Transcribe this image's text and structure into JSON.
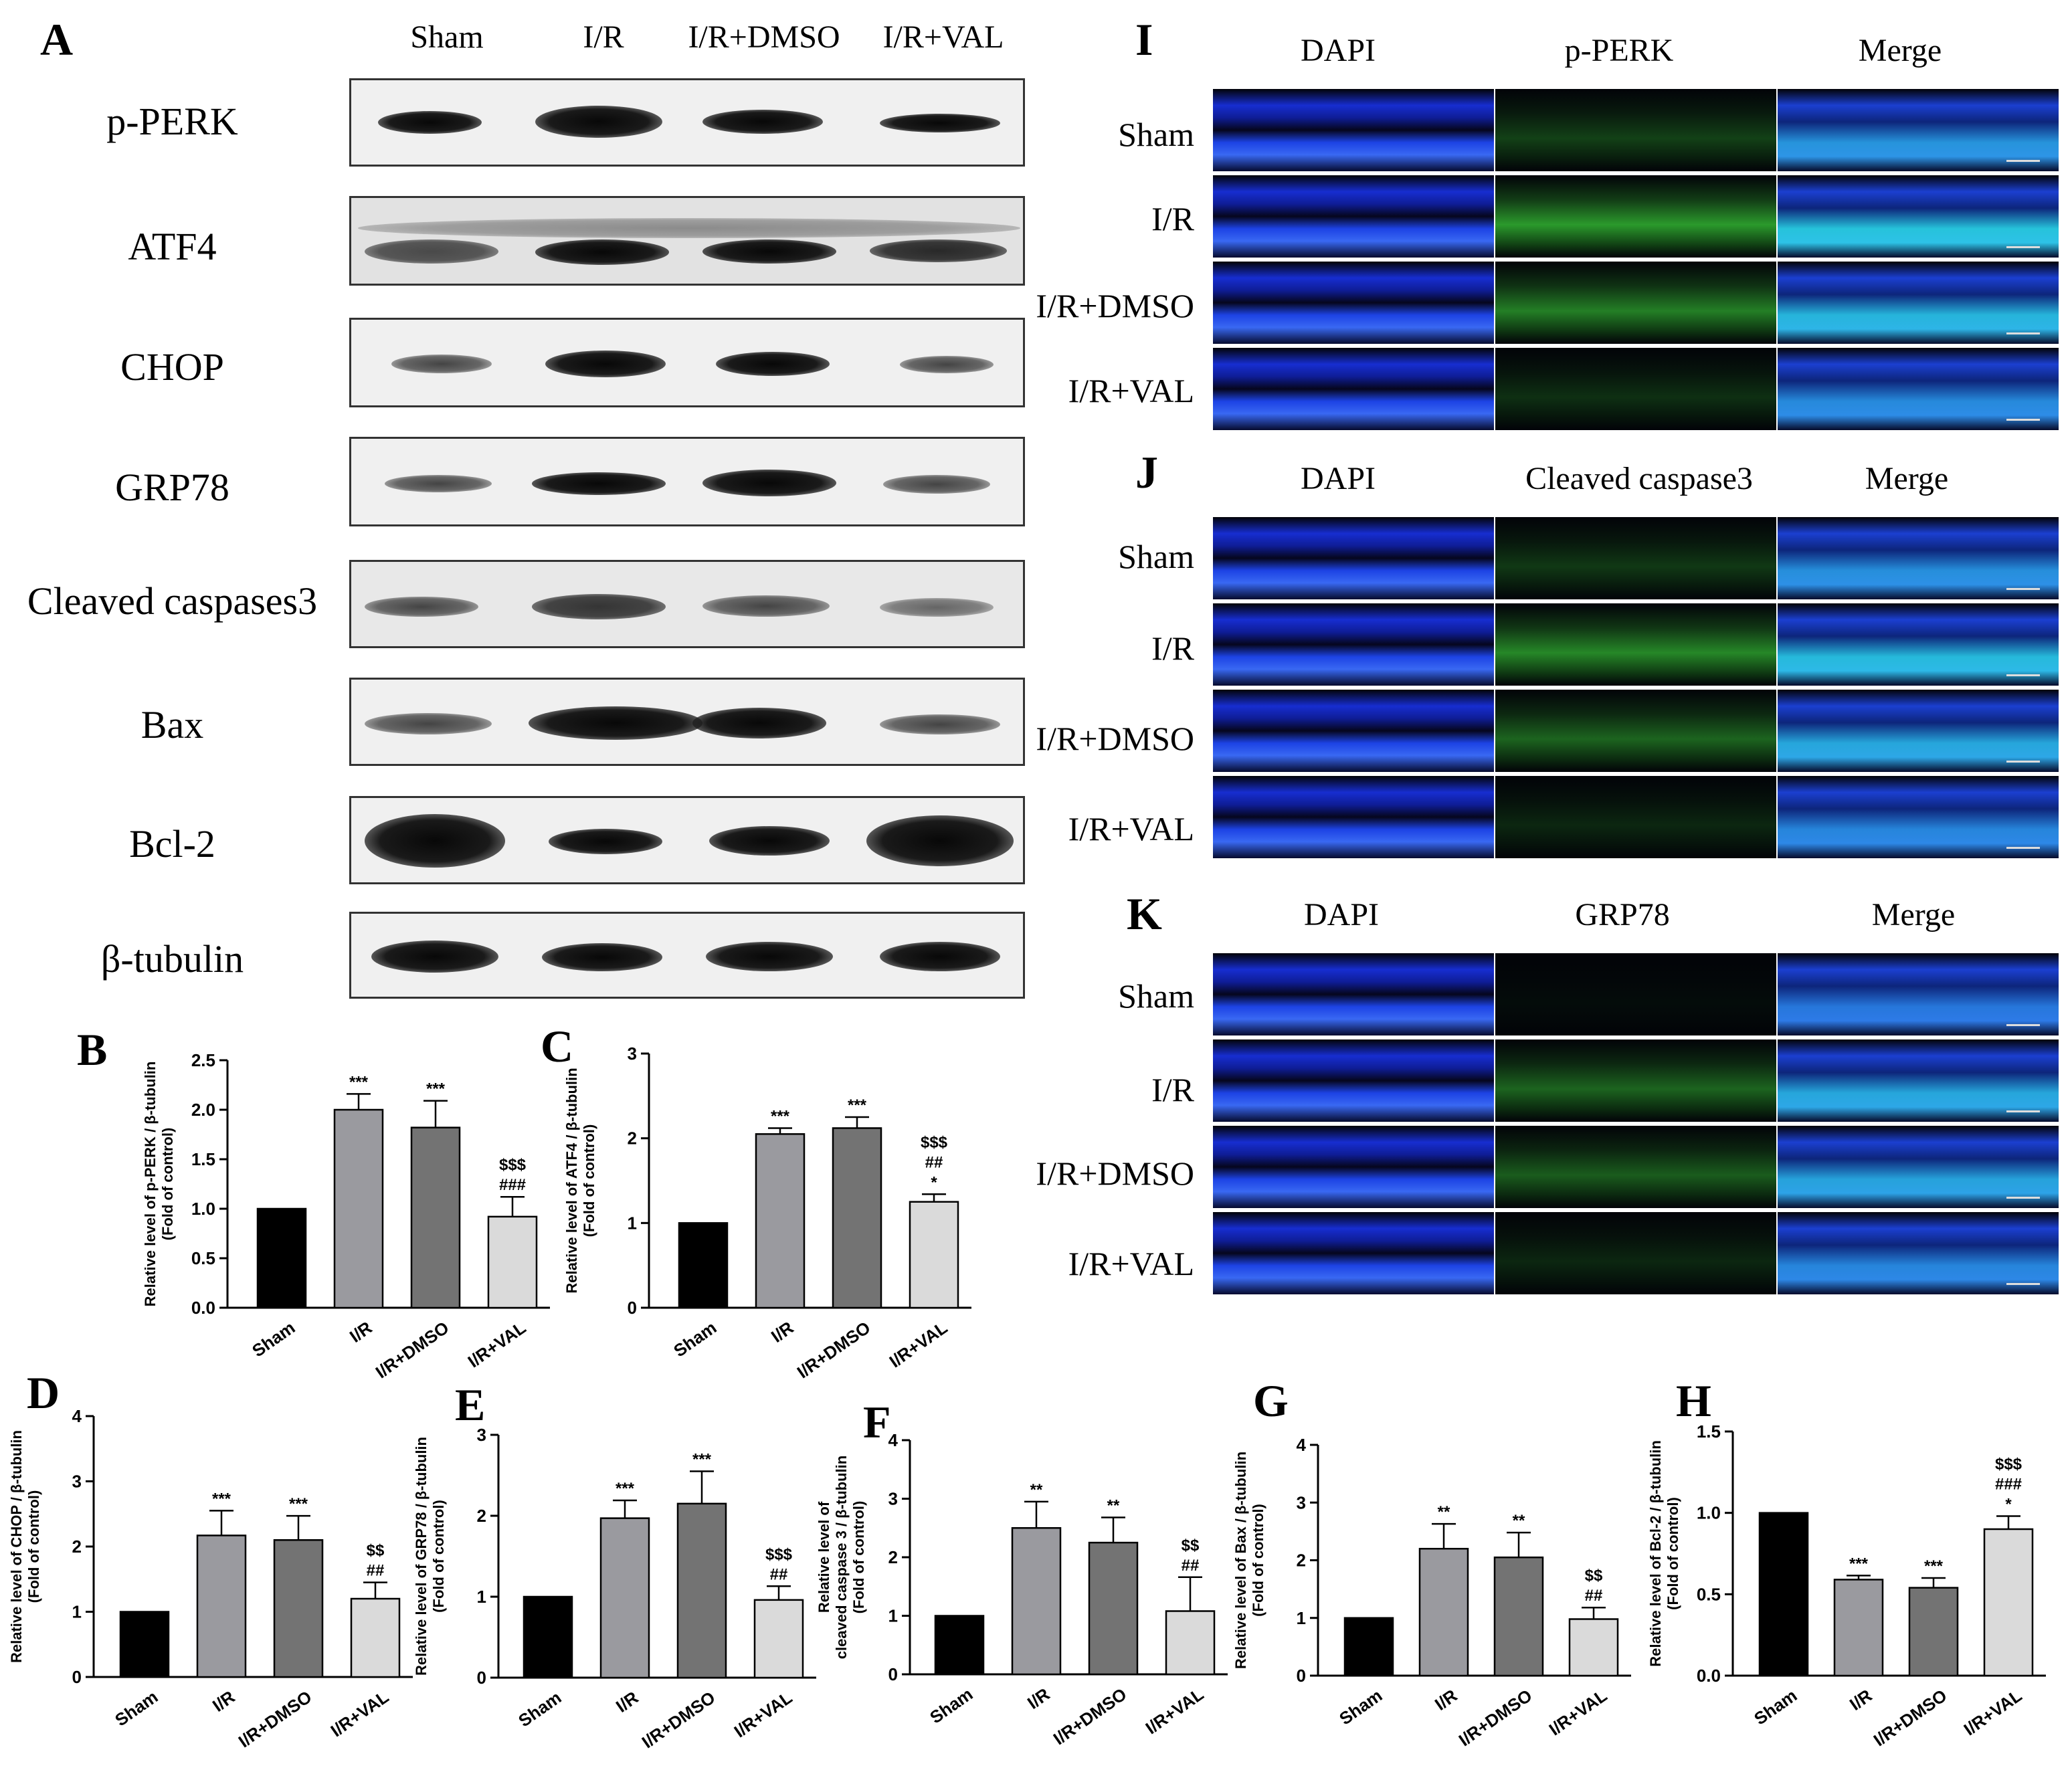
{
  "figure": {
    "panel_letters": [
      "A",
      "B",
      "C",
      "D",
      "E",
      "F",
      "G",
      "H",
      "I",
      "J",
      "K"
    ],
    "western_blot": {
      "groups": [
        "Sham",
        "I/R",
        "I/R+DMSO",
        "I/R+VAL"
      ],
      "proteins": [
        "p-PERK",
        "ATF4",
        "CHOP",
        "GRP78",
        "Cleaved caspases3",
        "Bax",
        "Bcl-2",
        "β-tubulin"
      ]
    },
    "fluorescence": [
      {
        "letter": "I",
        "columns": [
          "DAPI",
          "p-PERK",
          "Merge"
        ]
      },
      {
        "letter": "J",
        "columns": [
          "DAPI",
          "Cleaved caspase3",
          "Merge"
        ]
      },
      {
        "letter": "K",
        "columns": [
          "DAPI",
          "GRP78",
          "Merge"
        ]
      }
    ],
    "fluorescence_rows": [
      "Sham",
      "I/R",
      "I/R+DMSO",
      "I/R+VAL"
    ]
  },
  "chart_data": [
    {
      "panel": "B",
      "type": "bar",
      "categories": [
        "Sham",
        "I/R",
        "I/R+DMSO",
        "I/R+VAL"
      ],
      "values": [
        1.0,
        2.0,
        1.82,
        0.92
      ],
      "errors": [
        0,
        0.16,
        0.27,
        0.2
      ],
      "ylabel": [
        "Relative level of p-PERK / β-tubulin",
        "(Fold of control)"
      ],
      "ylim": [
        0,
        2.5
      ],
      "yticks": [
        "0.0",
        "0.5",
        "1.0",
        "1.5",
        "2.0",
        "2.5"
      ],
      "annotations": [
        [],
        [
          "***"
        ],
        [
          "***"
        ],
        [
          "$$$",
          "###"
        ]
      ]
    },
    {
      "panel": "C",
      "type": "bar",
      "categories": [
        "Sham",
        "I/R",
        "I/R+DMSO",
        "I/R+VAL"
      ],
      "values": [
        1.0,
        2.05,
        2.12,
        1.25
      ],
      "errors": [
        0,
        0.07,
        0.13,
        0.09
      ],
      "ylabel": [
        "Relative level of ATF4 / β-tubulin",
        "(Fold of control)"
      ],
      "ylim": [
        0,
        3
      ],
      "yticks": [
        "0",
        "1",
        "2",
        "3"
      ],
      "annotations": [
        [],
        [
          "***"
        ],
        [
          "***"
        ],
        [
          "$$$",
          "##",
          "*"
        ]
      ]
    },
    {
      "panel": "D",
      "type": "bar",
      "categories": [
        "Sham",
        "I/R",
        "I/R+DMSO",
        "I/R+VAL"
      ],
      "values": [
        1.0,
        2.17,
        2.1,
        1.2
      ],
      "errors": [
        0,
        0.38,
        0.37,
        0.25
      ],
      "ylabel": [
        "Relative level of CHOP / β-tubulin",
        "(Fold of control)"
      ],
      "ylim": [
        0,
        4
      ],
      "yticks": [
        "0",
        "1",
        "2",
        "3",
        "4"
      ],
      "annotations": [
        [],
        [
          "***"
        ],
        [
          "***"
        ],
        [
          "$$",
          "##"
        ]
      ]
    },
    {
      "panel": "E",
      "type": "bar",
      "categories": [
        "Sham",
        "I/R",
        "I/R+DMSO",
        "I/R+VAL"
      ],
      "values": [
        1.0,
        1.97,
        2.15,
        0.96
      ],
      "errors": [
        0,
        0.22,
        0.4,
        0.17
      ],
      "ylabel": [
        "Relative level of GRP78 / β-tubulin",
        "(Fold of control)"
      ],
      "ylim": [
        0,
        3
      ],
      "yticks": [
        "0",
        "1",
        "2",
        "3"
      ],
      "annotations": [
        [],
        [
          "***"
        ],
        [
          "***"
        ],
        [
          "$$$",
          "##"
        ]
      ]
    },
    {
      "panel": "F",
      "type": "bar",
      "categories": [
        "Sham",
        "I/R",
        "I/R+DMSO",
        "I/R+VAL"
      ],
      "values": [
        1.0,
        2.5,
        2.25,
        1.08
      ],
      "errors": [
        0,
        0.45,
        0.43,
        0.58
      ],
      "ylabel": [
        "Relative level of",
        "cleaved caspase 3 / β-tubulin",
        "(Fold of control)"
      ],
      "ylim": [
        0,
        4
      ],
      "yticks": [
        "0",
        "1",
        "2",
        "3",
        "4"
      ],
      "annotations": [
        [],
        [
          "**"
        ],
        [
          "**"
        ],
        [
          "$$",
          "##"
        ]
      ]
    },
    {
      "panel": "G",
      "type": "bar",
      "categories": [
        "Sham",
        "I/R",
        "I/R+DMSO",
        "I/R+VAL"
      ],
      "values": [
        1.0,
        2.2,
        2.05,
        0.98
      ],
      "errors": [
        0,
        0.43,
        0.43,
        0.2
      ],
      "ylabel": [
        "Relative level of Bax / β-tubulin",
        "(Fold of control)"
      ],
      "ylim": [
        0,
        4
      ],
      "yticks": [
        "0",
        "1",
        "2",
        "3",
        "4"
      ],
      "annotations": [
        [],
        [
          "**"
        ],
        [
          "**"
        ],
        [
          "$$",
          "##"
        ]
      ]
    },
    {
      "panel": "H",
      "type": "bar",
      "categories": [
        "Sham",
        "I/R",
        "I/R+DMSO",
        "I/R+VAL"
      ],
      "values": [
        1.0,
        0.59,
        0.54,
        0.9
      ],
      "errors": [
        0,
        0.025,
        0.06,
        0.08
      ],
      "ylabel": [
        "Relative level of Bcl-2 / β-tubulin",
        "(Fold of control)"
      ],
      "ylim": [
        0,
        1.5
      ],
      "yticks": [
        "0.0",
        "0.5",
        "1.0",
        "1.5"
      ],
      "annotations": [
        [],
        [
          "***"
        ],
        [
          "***"
        ],
        [
          "$$$",
          "###",
          "*"
        ]
      ]
    }
  ]
}
